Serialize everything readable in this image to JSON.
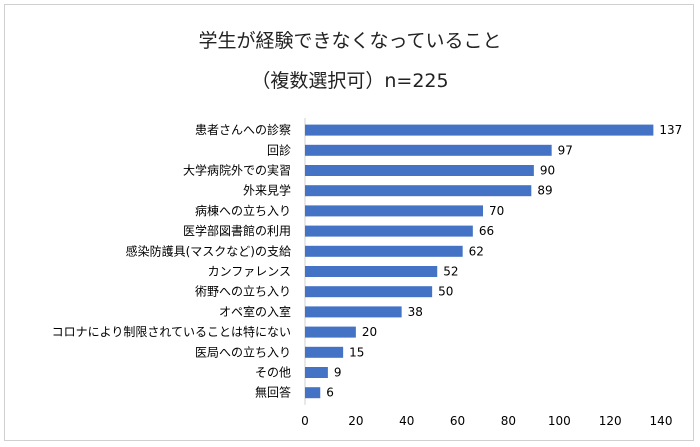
{
  "chart_data": {
    "type": "bar",
    "orientation": "horizontal",
    "title": "学生が経験できなくなっていること",
    "subtitle": "（複数選択可）n=225",
    "categories": [
      "患者さんへの診察",
      "回診",
      "大学病院外での実習",
      "外来見学",
      "病棟への立ち入り",
      "医学部図書館の利用",
      "感染防護具(マスクなど)の支給",
      "カンファレンス",
      "術野への立ち入り",
      "オペ室の入室",
      "コロナにより制限されていることは特にない",
      "医局への立ち入り",
      "その他",
      "無回答"
    ],
    "values": [
      137,
      97,
      90,
      89,
      70,
      66,
      62,
      52,
      50,
      38,
      20,
      15,
      9,
      6
    ],
    "xlim": [
      0,
      140
    ],
    "xticks": [
      "0",
      "20",
      "40",
      "60",
      "80",
      "100",
      "120",
      "140"
    ],
    "grid": false,
    "legend": "none",
    "bar_color": "#4472C4"
  }
}
